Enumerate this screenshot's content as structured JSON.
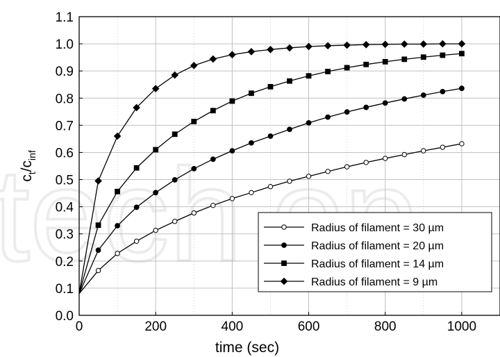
{
  "chart_data": {
    "type": "line",
    "title": "",
    "xlabel": "time (sec)",
    "ylabel": {
      "main": "c",
      "sub1": "t",
      "mid": "/c",
      "sub2": "inf"
    },
    "xlim": [
      0,
      1100
    ],
    "ylim": [
      0.0,
      1.1
    ],
    "xticks": [
      0,
      200,
      400,
      600,
      800,
      1000
    ],
    "xtick_labels": [
      "0",
      "200",
      "400",
      "600",
      "800",
      "1000"
    ],
    "yticks": [
      0.0,
      0.1,
      0.2,
      0.3,
      0.4,
      0.5,
      0.6,
      0.7,
      0.8,
      0.9,
      1.0,
      1.1
    ],
    "ytick_labels": [
      "0.0",
      "0.1",
      "0.2",
      "0.3",
      "0.4",
      "0.5",
      "0.6",
      "0.7",
      "0.8",
      "0.9",
      "1.0",
      "1.1"
    ],
    "grid": true,
    "legend_position": "lower-right",
    "x": [
      0,
      50,
      100,
      150,
      200,
      250,
      300,
      350,
      400,
      450,
      500,
      550,
      600,
      650,
      700,
      750,
      800,
      850,
      900,
      950,
      1000
    ],
    "series": [
      {
        "name": "Radius of filament = 30 µm",
        "marker": "open-circle",
        "values": [
          0.08,
          0.165,
          0.228,
          0.273,
          0.313,
          0.346,
          0.377,
          0.405,
          0.43,
          0.452,
          0.474,
          0.494,
          0.512,
          0.53,
          0.547,
          0.563,
          0.578,
          0.592,
          0.606,
          0.619,
          0.632
        ]
      },
      {
        "name": "Radius of filament = 20 µm",
        "marker": "filled-circle",
        "values": [
          0.08,
          0.24,
          0.33,
          0.398,
          0.452,
          0.499,
          0.54,
          0.575,
          0.606,
          0.635,
          0.66,
          0.685,
          0.709,
          0.73,
          0.749,
          0.766,
          0.782,
          0.797,
          0.811,
          0.824,
          0.836
        ]
      },
      {
        "name": "Radius of filament = 14 µm",
        "marker": "filled-square",
        "values": [
          0.08,
          0.332,
          0.456,
          0.543,
          0.61,
          0.667,
          0.714,
          0.754,
          0.789,
          0.818,
          0.842,
          0.863,
          0.882,
          0.898,
          0.912,
          0.924,
          0.934,
          0.943,
          0.951,
          0.958,
          0.964
        ]
      },
      {
        "name": "Radius of filament = 9 µm",
        "marker": "filled-diamond",
        "values": [
          0.08,
          0.495,
          0.66,
          0.765,
          0.835,
          0.885,
          0.92,
          0.944,
          0.96,
          0.971,
          0.979,
          0.985,
          0.99,
          0.993,
          0.995,
          0.997,
          0.998,
          0.999,
          0.999,
          1.0,
          1.0
        ]
      }
    ]
  },
  "colors": {
    "line": "#000000",
    "grid": "#c0c0c0",
    "axes": "#000000",
    "background": "#ffffff"
  }
}
